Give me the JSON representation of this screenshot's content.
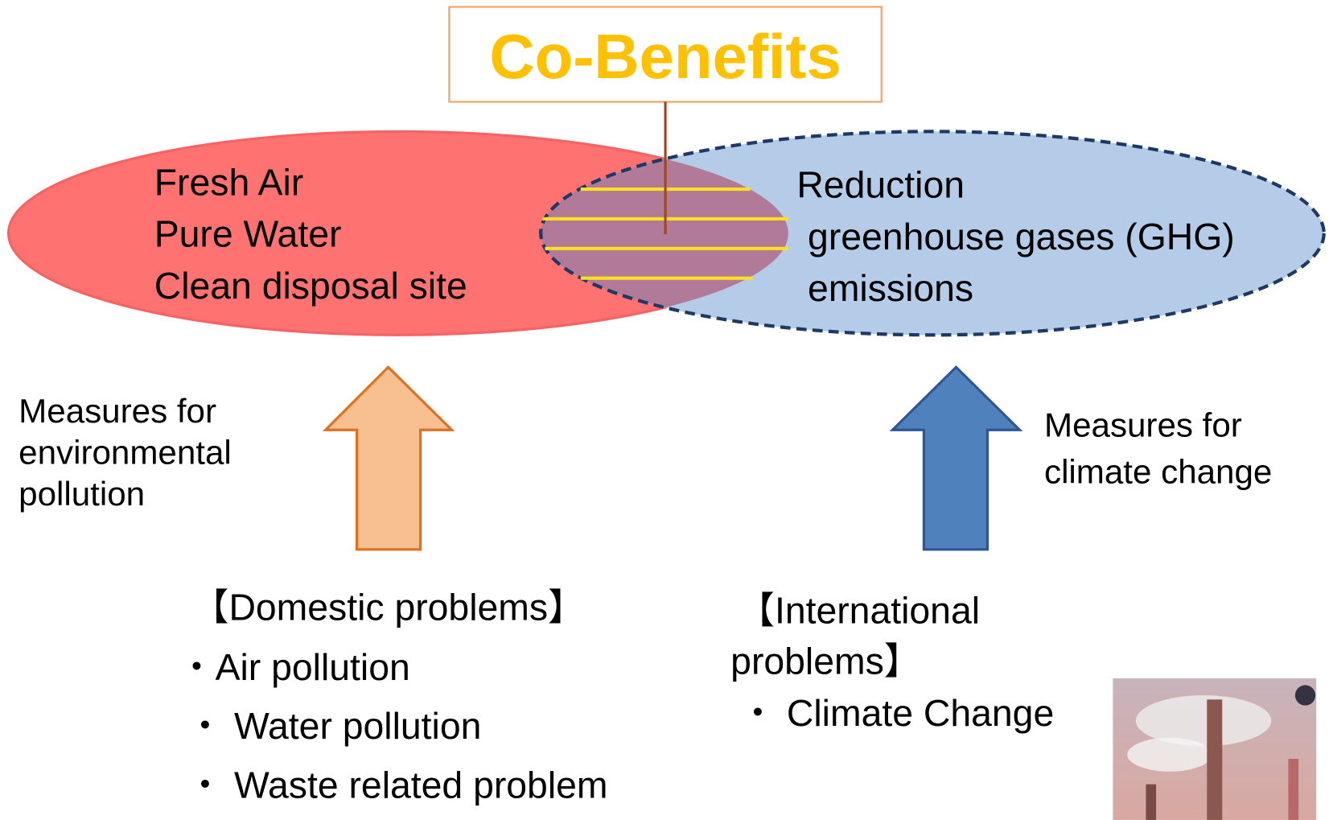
{
  "title": "Co-Benefits",
  "left_ellipse": {
    "lines": [
      "Fresh Air",
      "Pure Water",
      "Clean disposal site"
    ]
  },
  "right_ellipse": {
    "lines": [
      "Reduction",
      "greenhouse gases (GHG)",
      "emissions"
    ]
  },
  "left_measure": {
    "lines": [
      "Measures for",
      "environmental",
      "pollution"
    ]
  },
  "right_measure": {
    "lines": [
      "Measures for",
      "climate change"
    ]
  },
  "domestic": {
    "heading": "【Domestic problems】",
    "items": [
      "・Air pollution",
      "・ Water pollution",
      "・ Waste related problem"
    ]
  },
  "international": {
    "heading_lines": [
      "【International",
      "problems】"
    ],
    "items": [
      "・ Climate Change"
    ]
  }
}
